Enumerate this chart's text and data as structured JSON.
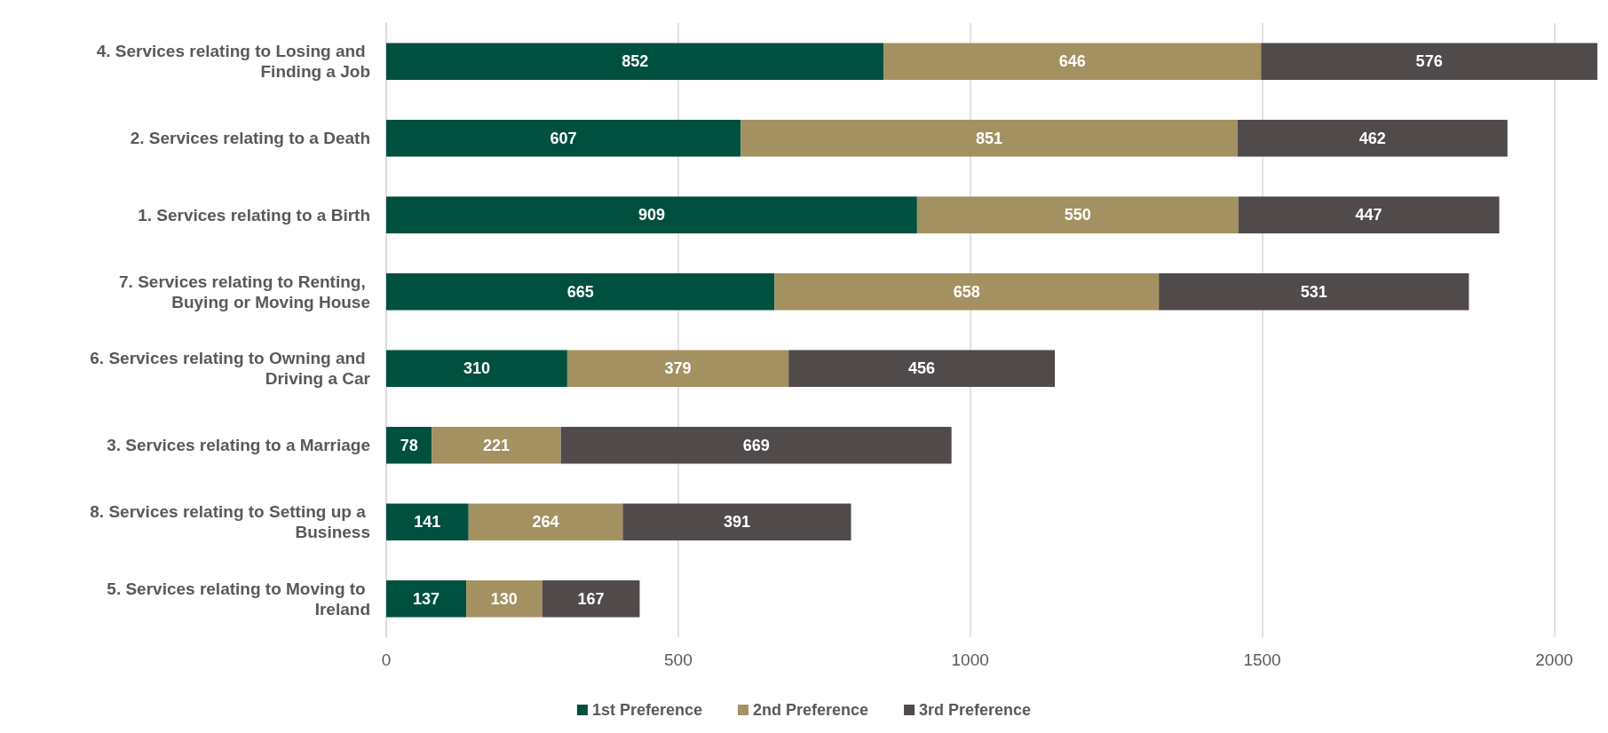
{
  "chart_data": {
    "type": "bar",
    "orientation": "horizontal",
    "stacked": true,
    "data_labels": true,
    "grid": "x",
    "legend": "bottom",
    "categories": [
      "4. Services relating to Losing and Finding a Job",
      "2. Services relating to a Death",
      "1. Services relating to a Birth",
      "7. Services relating to Renting, Buying or Moving House",
      "6. Services relating to Owning and Driving a Car",
      "3. Services relating to a Marriage",
      "8. Services relating to Setting up a Business",
      "5. Services relating to Moving to Ireland"
    ],
    "series": [
      {
        "name": "1st Preference",
        "color": "#00503f",
        "values": [
          852,
          607,
          909,
          665,
          310,
          78,
          141,
          137
        ]
      },
      {
        "name": "2nd Preference",
        "color": "#a39162",
        "values": [
          646,
          851,
          550,
          658,
          379,
          221,
          264,
          130
        ]
      },
      {
        "name": "3rd Preference",
        "color": "#514a4a",
        "values": [
          576,
          462,
          447,
          531,
          456,
          669,
          391,
          167
        ]
      }
    ],
    "xlim": [
      0,
      2080
    ],
    "xticks": [
      0,
      500,
      1000,
      1500,
      2000
    ]
  }
}
